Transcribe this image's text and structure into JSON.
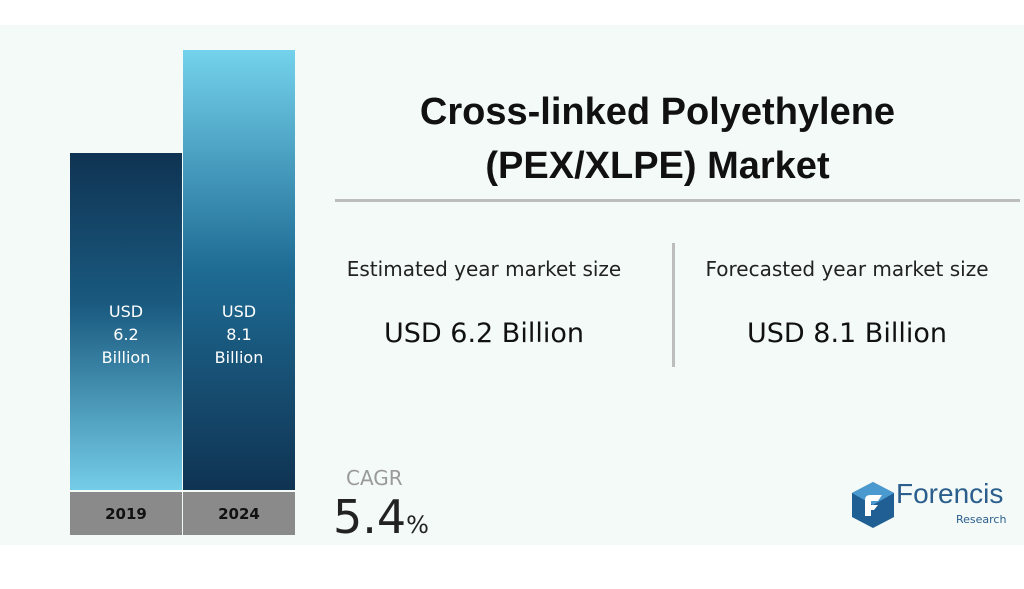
{
  "chart_data": {
    "type": "bar",
    "title": "Cross-linked Polyethylene (PEX/XLPE) Market",
    "categories": [
      "2019",
      "2024"
    ],
    "values": [
      6.2,
      8.1
    ],
    "value_labels": [
      "USD 6.2 Billion",
      "USD 8.1 Billion"
    ]
  },
  "stats": [
    {
      "label": "Estimated year market size"
    },
    {
      "label": "Forecasted year market size"
    }
  ],
  "cagr": {
    "label": "CAGR",
    "value": 5.4,
    "unit": "%"
  },
  "logo": {
    "name": "Forencis",
    "tagline": "Research"
  }
}
